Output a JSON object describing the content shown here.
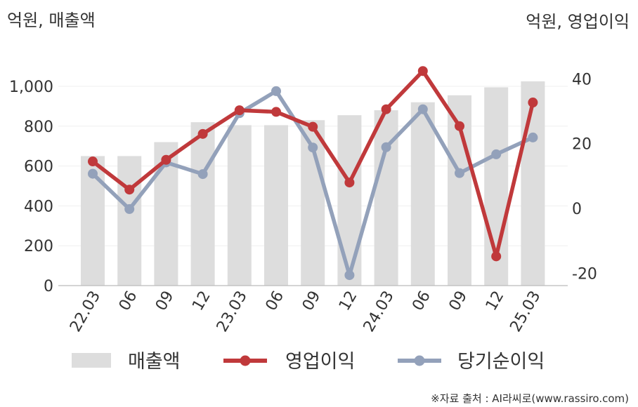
{
  "left_axis_title": "억원, 매출액",
  "right_axis_title": "억원, 영업이익",
  "source": "※자료 출처 : AI라씨로(www.rassiro.com)",
  "chart_data": {
    "type": "bar",
    "categories": [
      "22.03",
      "06",
      "09",
      "12",
      "23.03",
      "06",
      "09",
      "12",
      "24.03",
      "06",
      "09",
      "12",
      "25.03"
    ],
    "left_axis": {
      "ticks": [
        "0",
        "200",
        "400",
        "600",
        "800",
        "1,000"
      ],
      "ylim": [
        0,
        1100
      ]
    },
    "right_axis": {
      "ticks": [
        "-20",
        "0",
        "20",
        "40"
      ],
      "ylim": [
        -24,
        44
      ]
    },
    "grid": true,
    "legend_position": "bottom",
    "series": [
      {
        "name": "매출액",
        "type": "bar",
        "axis": "left",
        "color": "#dddddd",
        "values": [
          650,
          650,
          720,
          820,
          805,
          805,
          830,
          855,
          880,
          920,
          955,
          995,
          1025
        ]
      },
      {
        "name": "영업이익",
        "type": "line",
        "axis": "right",
        "color": "#c0393b",
        "values": [
          14.5,
          5.8,
          15,
          23,
          30.3,
          29.8,
          25.2,
          8,
          30.6,
          42.4,
          25.4,
          -14.8,
          32.7
        ]
      },
      {
        "name": "당기순이익",
        "type": "line",
        "axis": "right",
        "color": "#93a1ba",
        "values": [
          10.7,
          -0.2,
          14.2,
          10.6,
          29.4,
          36.2,
          18.8,
          -20.6,
          18.9,
          30.6,
          10.9,
          16.7,
          21.9
        ]
      }
    ]
  }
}
